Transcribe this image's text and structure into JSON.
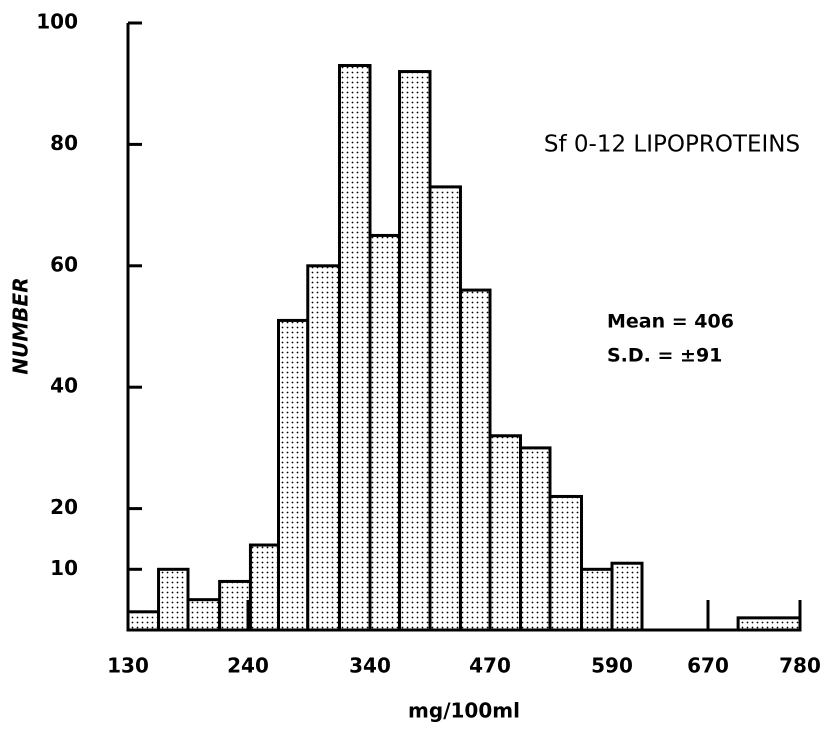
{
  "chart_data": {
    "type": "histogram",
    "annotations": [
      "Sf 0-12 LIPOPROTEINS",
      "Mean = 406",
      "S.D. = ±91"
    ],
    "xlabel": "mg/100ml",
    "ylabel": "NUMBER",
    "bins": [
      130,
      158,
      185,
      214,
      242,
      265,
      289,
      315,
      340,
      372,
      405,
      438,
      470,
      500,
      529,
      560,
      590,
      615,
      706,
      780
    ],
    "values": [
      3,
      10,
      5,
      8,
      14,
      51,
      60,
      93,
      65,
      92,
      73,
      56,
      32,
      30,
      22,
      10,
      11,
      0,
      2
    ],
    "xlim": [
      130,
      780
    ],
    "xticks": [
      130,
      240,
      340,
      470,
      590,
      670,
      780
    ],
    "ylim": [
      0,
      100
    ],
    "yticks": [
      10,
      20,
      40,
      60,
      80,
      100
    ],
    "color": "#000000"
  }
}
